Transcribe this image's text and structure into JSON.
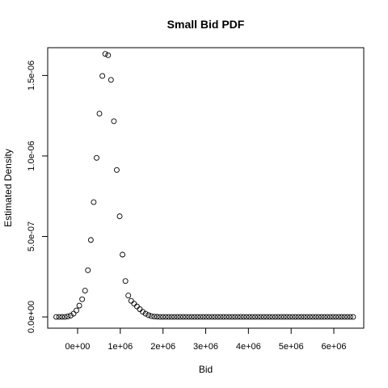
{
  "chart_data": {
    "type": "scatter",
    "title": "Small Bid PDF",
    "xlabel": "Bid",
    "ylabel": "Estimated Density",
    "xlim": [
      -700000,
      6700000
    ],
    "ylim": [
      -7e-08,
      1.6727e-06
    ],
    "x_ticks": [
      {
        "value": 0,
        "label": "0e+00"
      },
      {
        "value": 1000000,
        "label": "1e+06"
      },
      {
        "value": 2000000,
        "label": "2e+06"
      },
      {
        "value": 3000000,
        "label": "3e+06"
      },
      {
        "value": 4000000,
        "label": "4e+06"
      },
      {
        "value": 5000000,
        "label": "5e+06"
      },
      {
        "value": 6000000,
        "label": "6e+06"
      }
    ],
    "y_ticks": [
      {
        "value": 0,
        "label": "0.0e+00"
      },
      {
        "value": 5e-07,
        "label": "5.0e-07"
      },
      {
        "value": 1e-06,
        "label": "1.0e-06"
      },
      {
        "value": 1.5e-06,
        "label": "1.5e-06"
      }
    ],
    "marker": "open-circle",
    "grid": false,
    "series": [
      {
        "x": [
          -500000,
          -433000,
          -365000,
          -298000,
          -230000,
          -163000,
          -95000,
          -28000,
          40000,
          107000,
          175000,
          242000,
          310000,
          377000,
          445000,
          512000,
          580000,
          647000,
          715000,
          782000,
          850000,
          917000,
          985000,
          1052000,
          1120000,
          1187000,
          1255000,
          1322000,
          1390000,
          1457000,
          1525000,
          1592000,
          1660000,
          1727000,
          1795000,
          1862000,
          1930000,
          1997000,
          2065000,
          2132000,
          2200000,
          2267000,
          2335000,
          2402000,
          2470000,
          2537000,
          2605000,
          2672000,
          2740000,
          2807000,
          2875000,
          2942000,
          3010000,
          3077000,
          3145000,
          3212000,
          3280000,
          3347000,
          3415000,
          3482000,
          3550000,
          3617000,
          3685000,
          3752000,
          3820000,
          3887000,
          3955000,
          4022000,
          4090000,
          4157000,
          4225000,
          4292000,
          4360000,
          4427000,
          4495000,
          4562000,
          4630000,
          4697000,
          4765000,
          4832000,
          4900000,
          4967000,
          5035000,
          5102000,
          5170000,
          5237000,
          5305000,
          5372000,
          5440000,
          5507000,
          5575000,
          5642000,
          5710000,
          5777000,
          5845000,
          5912000,
          5980000,
          6047000,
          6115000,
          6182000,
          6250000,
          6317000,
          6385000,
          6452000
        ],
        "y": [
          0,
          0,
          0,
          0,
          3e-09,
          8e-09,
          2e-08,
          4e-08,
          7e-08,
          1.1e-07,
          1.63e-07,
          2.9e-07,
          4.78e-07,
          7.13e-07,
          9.88e-07,
          1.263e-06,
          1.497e-06,
          1.634e-06,
          1.626e-06,
          1.473e-06,
          1.216e-06,
          9.13e-07,
          6.25e-07,
          3.87e-07,
          2.23e-07,
          1.33e-07,
          1e-07,
          8.2e-08,
          6.5e-08,
          4.8e-08,
          3.2e-08,
          2e-08,
          1.1e-08,
          5e-09,
          2e-09,
          1e-09,
          0,
          0,
          0,
          0,
          0,
          0,
          0,
          0,
          0,
          0,
          0,
          0,
          0,
          0,
          0,
          0,
          0,
          0,
          0,
          0,
          0,
          0,
          0,
          0,
          0,
          0,
          0,
          0,
          0,
          0,
          0,
          0,
          0,
          0,
          0,
          0,
          0,
          0,
          0,
          0,
          0,
          0,
          0,
          0,
          0,
          0,
          0,
          0,
          0,
          0,
          0,
          0,
          0,
          0,
          0,
          0,
          0,
          0,
          0,
          0,
          0,
          0,
          0,
          0,
          0,
          0,
          0,
          0
        ]
      }
    ]
  }
}
